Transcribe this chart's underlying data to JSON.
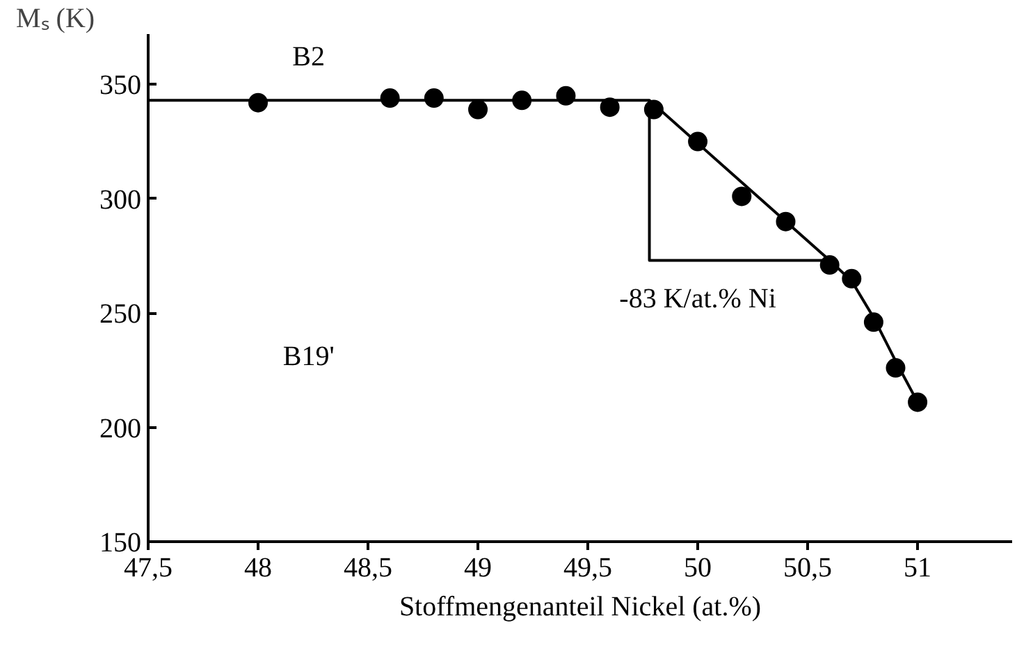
{
  "chart_data": {
    "type": "scatter",
    "xlabel": "Stoffmengenanteil Nickel (at.%)",
    "ylabel": "Mₛ (K)",
    "xlim": [
      47.5,
      51.43
    ],
    "ylim": [
      150,
      372
    ],
    "xticks": [
      {
        "value": 47.5,
        "label": "47,5"
      },
      48,
      {
        "value": 48.5,
        "label": "48,5"
      },
      49,
      {
        "value": 49.5,
        "label": "49,5"
      },
      50,
      {
        "value": 50.5,
        "label": "50,5"
      },
      51
    ],
    "yticks": [
      150,
      200,
      250,
      300,
      350
    ],
    "grid": false,
    "marker": "circle",
    "series": [
      {
        "color": "#000000",
        "x": [
          48,
          48.6,
          48.8,
          49,
          49.2,
          49.4,
          49.6,
          49.8,
          50,
          50.2,
          50.4,
          50.6,
          50.7,
          50.8,
          50.9,
          51
        ],
        "values": [
          342,
          344,
          344,
          339,
          343,
          345,
          340,
          339,
          325,
          301,
          290,
          271,
          265,
          246,
          226,
          211
        ]
      },
      {
        "type": "line",
        "color": "#000000",
        "marker": "none",
        "line_style": "solid",
        "x": [
          47.5,
          49.78,
          50.6,
          50.7,
          50.8,
          50.9,
          51.0
        ],
        "values": [
          343,
          343,
          273,
          264,
          248,
          229,
          211
        ]
      },
      {
        "type": "line",
        "color": "#000000",
        "marker": "none",
        "line_style": "solid",
        "x": [
          49.78,
          49.78,
          50.6
        ],
        "values": [
          343,
          273,
          273
        ]
      }
    ],
    "annotations": [
      "-83 K/at.% Ni",
      "B2",
      "B19'"
    ]
  }
}
